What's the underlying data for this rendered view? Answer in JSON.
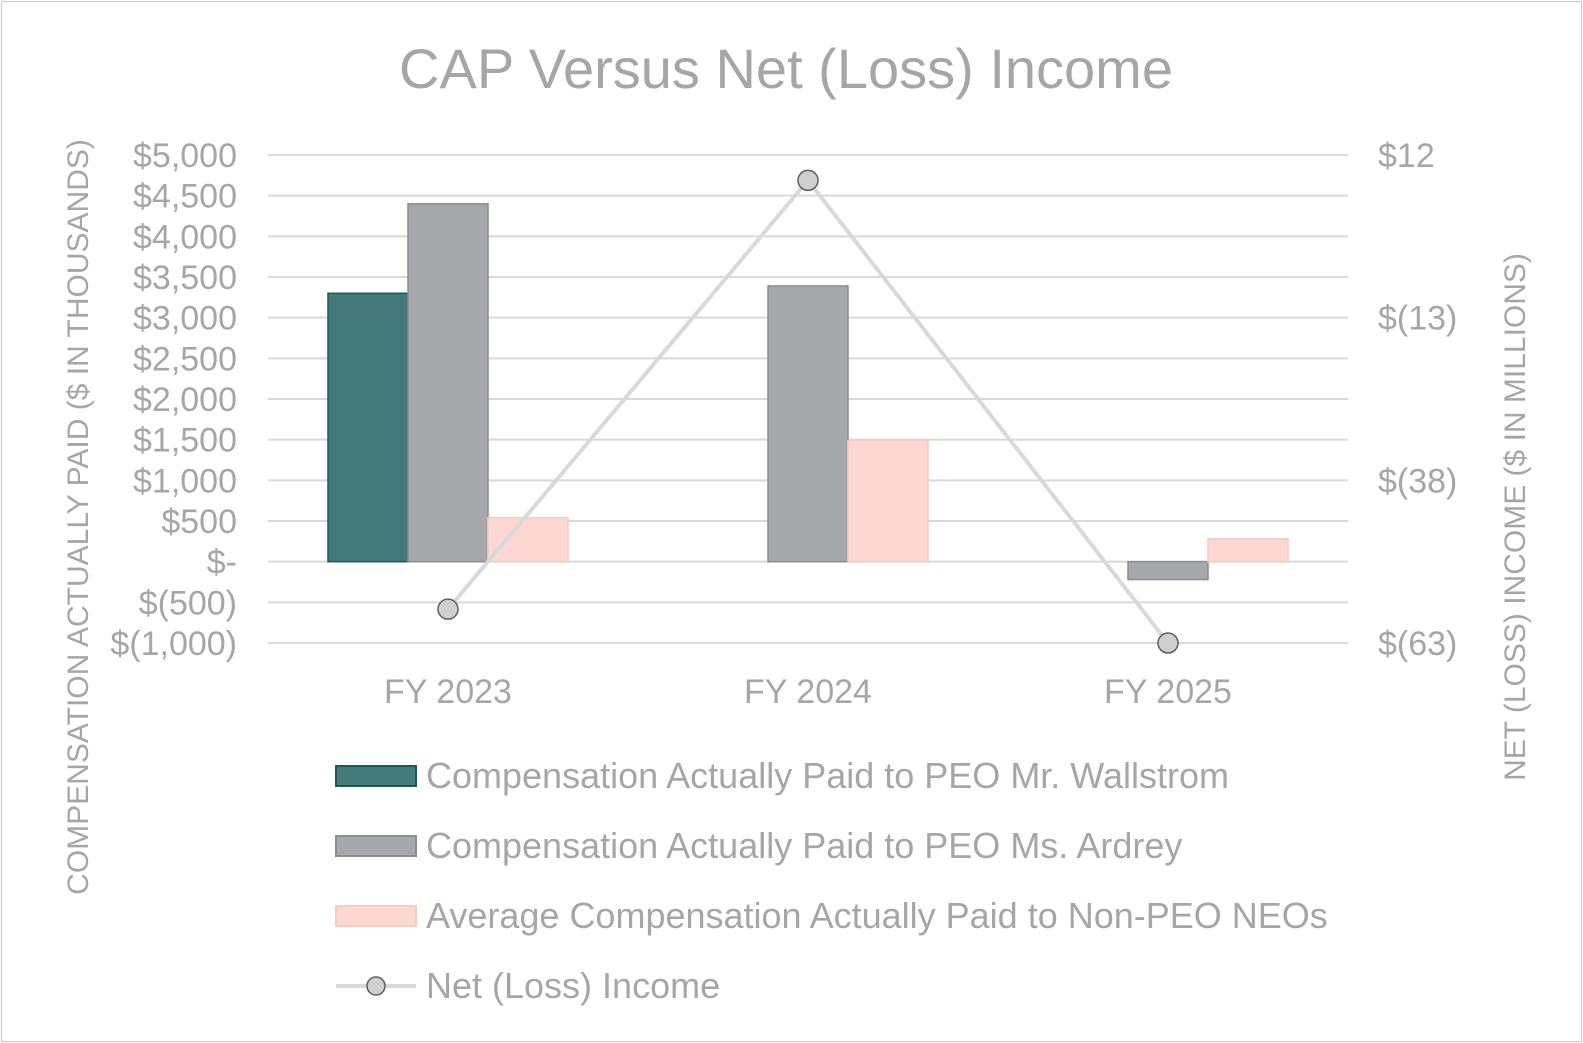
{
  "chart_data": {
    "type": "bar",
    "title": "CAP Versus Net (Loss) Income",
    "ylabel": "COMPENSATION ACTUALLY PAID ($ IN THOUSANDS)",
    "y2label": "NET (LOSS) INCOME ($ IN MILLIONS)",
    "categories": [
      "FY 2023",
      "FY 2024",
      "FY 2025"
    ],
    "ylim": [
      -1000,
      5000
    ],
    "y_ticks": [
      5000,
      4500,
      4000,
      3500,
      3000,
      2500,
      2000,
      1500,
      1000,
      500,
      0,
      -500,
      -1000
    ],
    "y_tick_labels": [
      "$5,000",
      "$4,500",
      "$4,000",
      "$3,500",
      "$3,000",
      "$2,500",
      "$2,000",
      "$1,500",
      "$1,000",
      "$500",
      "$-",
      "$(500)",
      "$(1,000)"
    ],
    "y2lim": [
      -63,
      12
    ],
    "y2_ticks": [
      12,
      -13,
      -38,
      -63
    ],
    "y2_tick_labels": [
      "$12",
      "$(13)",
      "$(38)",
      "$(63)"
    ],
    "grid": true,
    "legend_position": "bottom",
    "series": [
      {
        "name": "Compensation Actually Paid to PEO Mr. Wallstrom",
        "kind": "bar",
        "color": "#44797a",
        "stroke": "#1f5a5a",
        "values": [
          3300,
          null,
          null
        ]
      },
      {
        "name": "Compensation Actually Paid to PEO Ms. Ardrey",
        "kind": "bar",
        "color": "#a7a8ac",
        "stroke": "#8c8d91",
        "values": [
          4400,
          3390,
          -220
        ]
      },
      {
        "name": "Average Compensation Actually Paid to Non-PEO NEOs",
        "kind": "bar",
        "color": "#fdd8d2",
        "stroke": "#f6cbc4",
        "values": [
          540,
          1490,
          280
        ]
      },
      {
        "name": "Net (Loss) Income",
        "kind": "line",
        "axis": "secondary",
        "color": "#d9d9d9",
        "marker_color": "#cfcfcf",
        "values": [
          -57.8,
          8.1,
          -63
        ]
      }
    ]
  }
}
